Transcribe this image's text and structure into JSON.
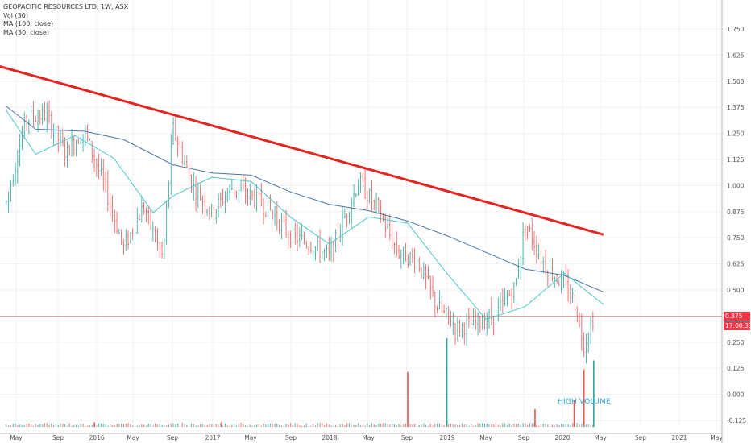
{
  "legend": {
    "title": "GEOPACIFIC RESOURCES LTD, 1W, ASX",
    "vol": "Vol (30)",
    "ma100": "MA (100, close)",
    "ma30": "MA (30, close)"
  },
  "annotation": "HIGH VOLUME",
  "price_tag": {
    "price": "0.375",
    "countdown": "17:00:33"
  },
  "colors": {
    "up": "#26a69a",
    "down": "#ef5350",
    "trendline": "#e5231f",
    "ma100": "#4a78a8",
    "ma30": "#4cc5c5",
    "price_line": "#f08080",
    "grid": "#eef0f3",
    "axis_text": "#555555",
    "annotation": "#29a8e0"
  },
  "chart_data": {
    "type": "candlestick",
    "title": "GEOPACIFIC RESOURCES LTD, 1W, ASX",
    "timeframe": "1W",
    "x_tick_labels": [
      "May",
      "Sep",
      "2016",
      "May",
      "Sep",
      "2017",
      "May",
      "Sep",
      "2018",
      "May",
      "Sep",
      "2019",
      "May",
      "Sep",
      "2020",
      "May",
      "Sep",
      "2021",
      "May"
    ],
    "y_tick_labels": [
      "1.750",
      "1.625",
      "1.500",
      "1.375",
      "1.250",
      "1.125",
      "1.000",
      "0.875",
      "0.750",
      "0.625",
      "0.500",
      "0.375",
      "0.250",
      "0.125",
      "0.000",
      "-0.125"
    ],
    "ylim": [
      -0.15,
      1.8
    ],
    "grid": true,
    "last_price": 0.375,
    "price_keypoints": [
      {
        "x": "2015-04",
        "y": 0.92
      },
      {
        "x": "2015-06",
        "y": 1.32
      },
      {
        "x": "2015-08",
        "y": 1.34
      },
      {
        "x": "2015-10",
        "y": 1.16
      },
      {
        "x": "2015-12",
        "y": 1.26
      },
      {
        "x": "2016-02",
        "y": 1.0
      },
      {
        "x": "2016-04",
        "y": 0.7
      },
      {
        "x": "2016-06",
        "y": 0.9
      },
      {
        "x": "2016-08",
        "y": 0.65
      },
      {
        "x": "2016-09",
        "y": 1.28
      },
      {
        "x": "2016-11",
        "y": 1.0
      },
      {
        "x": "2017-01",
        "y": 0.87
      },
      {
        "x": "2017-03",
        "y": 0.99
      },
      {
        "x": "2017-05",
        "y": 0.95
      },
      {
        "x": "2017-07",
        "y": 0.88
      },
      {
        "x": "2017-09",
        "y": 0.76
      },
      {
        "x": "2017-11",
        "y": 0.72
      },
      {
        "x": "2018-01",
        "y": 0.66
      },
      {
        "x": "2018-03",
        "y": 0.9
      },
      {
        "x": "2018-04",
        "y": 1.02
      },
      {
        "x": "2018-06",
        "y": 0.88
      },
      {
        "x": "2018-08",
        "y": 0.68
      },
      {
        "x": "2018-10",
        "y": 0.64
      },
      {
        "x": "2018-12",
        "y": 0.42
      },
      {
        "x": "2019-02",
        "y": 0.32
      },
      {
        "x": "2019-04",
        "y": 0.34
      },
      {
        "x": "2019-06",
        "y": 0.38
      },
      {
        "x": "2019-08",
        "y": 0.52
      },
      {
        "x": "2019-09",
        "y": 0.82
      },
      {
        "x": "2019-11",
        "y": 0.62
      },
      {
        "x": "2020-01",
        "y": 0.52
      },
      {
        "x": "2020-02",
        "y": 0.45
      },
      {
        "x": "2020-03",
        "y": 0.24
      },
      {
        "x": "2020-04",
        "y": 0.375
      }
    ],
    "ma100_keypoints": [
      {
        "x": "2015-04",
        "y": 1.38
      },
      {
        "x": "2015-07",
        "y": 1.27
      },
      {
        "x": "2015-12",
        "y": 1.26
      },
      {
        "x": "2016-04",
        "y": 1.22
      },
      {
        "x": "2016-09",
        "y": 1.1
      },
      {
        "x": "2017-01",
        "y": 1.06
      },
      {
        "x": "2017-05",
        "y": 1.05
      },
      {
        "x": "2017-09",
        "y": 0.97
      },
      {
        "x": "2018-01",
        "y": 0.91
      },
      {
        "x": "2018-05",
        "y": 0.88
      },
      {
        "x": "2018-09",
        "y": 0.83
      },
      {
        "x": "2019-01",
        "y": 0.76
      },
      {
        "x": "2019-05",
        "y": 0.68
      },
      {
        "x": "2019-09",
        "y": 0.6
      },
      {
        "x": "2020-01",
        "y": 0.57
      },
      {
        "x": "2020-05",
        "y": 0.49
      }
    ],
    "ma30_keypoints": [
      {
        "x": "2015-04",
        "y": 1.36
      },
      {
        "x": "2015-07",
        "y": 1.15
      },
      {
        "x": "2015-11",
        "y": 1.24
      },
      {
        "x": "2016-03",
        "y": 1.13
      },
      {
        "x": "2016-07",
        "y": 0.87
      },
      {
        "x": "2016-09",
        "y": 0.95
      },
      {
        "x": "2017-01",
        "y": 1.04
      },
      {
        "x": "2017-05",
        "y": 1.02
      },
      {
        "x": "2017-09",
        "y": 0.85
      },
      {
        "x": "2018-01",
        "y": 0.72
      },
      {
        "x": "2018-05",
        "y": 0.85
      },
      {
        "x": "2018-09",
        "y": 0.82
      },
      {
        "x": "2019-01",
        "y": 0.58
      },
      {
        "x": "2019-05",
        "y": 0.36
      },
      {
        "x": "2019-09",
        "y": 0.42
      },
      {
        "x": "2020-01",
        "y": 0.58
      },
      {
        "x": "2020-05",
        "y": 0.43
      }
    ],
    "trendline": [
      {
        "x": "2015-03",
        "y": 1.575
      },
      {
        "x": "2020-05",
        "y": 0.765
      }
    ],
    "volume_spikes": [
      {
        "x": "2016-01",
        "level": 0.05
      },
      {
        "x": "2017-02",
        "level": 0.06
      },
      {
        "x": "2018-09",
        "level": 0.62
      },
      {
        "x": "2019-01",
        "level": 1.0
      },
      {
        "x": "2019-10",
        "level": 0.2
      },
      {
        "x": "2020-02",
        "level": 0.3
      },
      {
        "x": "2020-03",
        "level": 0.65
      },
      {
        "x": "2020-04",
        "level": 0.75
      }
    ]
  }
}
